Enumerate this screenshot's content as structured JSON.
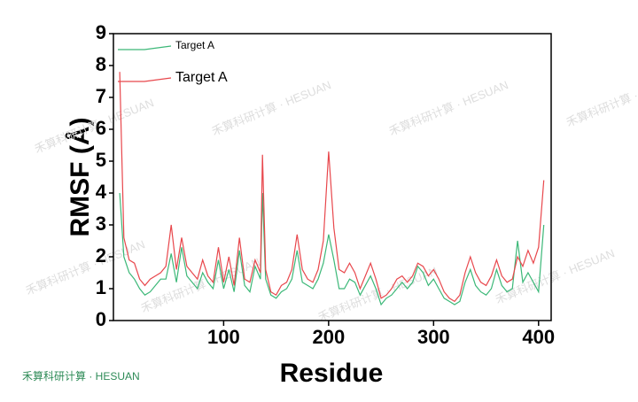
{
  "chart_data": {
    "type": "line",
    "xlabel": "Residue",
    "ylabel": "RMSF (Å)",
    "watermark": "禾算科研计算 · HESUAN",
    "footer": "禾算科研计算 · HESUAN",
    "x": [
      1,
      5,
      10,
      15,
      20,
      25,
      30,
      35,
      40,
      45,
      50,
      55,
      60,
      65,
      70,
      75,
      80,
      85,
      90,
      95,
      100,
      105,
      110,
      115,
      120,
      125,
      130,
      135,
      137,
      140,
      145,
      150,
      155,
      160,
      165,
      170,
      175,
      180,
      185,
      190,
      195,
      200,
      205,
      210,
      215,
      220,
      225,
      230,
      235,
      240,
      245,
      250,
      255,
      260,
      265,
      270,
      275,
      280,
      285,
      290,
      295,
      300,
      305,
      310,
      315,
      320,
      325,
      330,
      335,
      340,
      345,
      350,
      355,
      360,
      365,
      370,
      375,
      380,
      385,
      390,
      395,
      400,
      405
    ],
    "series": [
      {
        "name": "Target A",
        "color": "#3cb878",
        "values": [
          4.0,
          2.0,
          1.5,
          1.3,
          1.0,
          0.8,
          0.9,
          1.1,
          1.3,
          1.3,
          2.1,
          1.2,
          2.3,
          1.4,
          1.2,
          1.0,
          1.5,
          1.2,
          1.0,
          1.9,
          1.0,
          1.6,
          0.9,
          2.2,
          1.1,
          0.9,
          1.7,
          1.3,
          4.0,
          1.3,
          0.8,
          0.7,
          0.9,
          1.0,
          1.3,
          2.2,
          1.2,
          1.1,
          1.0,
          1.3,
          1.8,
          2.7,
          1.9,
          1.0,
          1.0,
          1.3,
          1.2,
          0.8,
          1.1,
          1.4,
          1.0,
          0.5,
          0.7,
          0.8,
          1.0,
          1.2,
          1.0,
          1.2,
          1.7,
          1.5,
          1.1,
          1.3,
          1.0,
          0.7,
          0.6,
          0.5,
          0.6,
          1.2,
          1.6,
          1.1,
          0.9,
          0.8,
          1.0,
          1.6,
          1.1,
          0.9,
          1.0,
          2.5,
          1.2,
          1.5,
          1.2,
          0.9,
          3.0
        ]
      },
      {
        "name": "Target A",
        "color": "#e8474c",
        "values": [
          7.8,
          2.6,
          1.9,
          1.8,
          1.3,
          1.1,
          1.3,
          1.4,
          1.5,
          1.7,
          3.0,
          1.6,
          2.6,
          1.7,
          1.5,
          1.3,
          1.9,
          1.4,
          1.2,
          2.3,
          1.2,
          2.0,
          1.1,
          2.6,
          1.3,
          1.2,
          1.9,
          1.5,
          5.2,
          1.6,
          0.9,
          0.8,
          1.1,
          1.2,
          1.6,
          2.7,
          1.6,
          1.3,
          1.2,
          1.6,
          2.5,
          5.3,
          2.9,
          1.6,
          1.5,
          1.8,
          1.5,
          1.0,
          1.4,
          1.8,
          1.3,
          0.7,
          0.8,
          1.0,
          1.3,
          1.4,
          1.2,
          1.4,
          1.8,
          1.7,
          1.4,
          1.6,
          1.3,
          0.9,
          0.7,
          0.6,
          0.8,
          1.5,
          2.0,
          1.5,
          1.2,
          1.1,
          1.4,
          1.9,
          1.4,
          1.2,
          1.3,
          2.0,
          1.7,
          2.2,
          1.8,
          2.3,
          4.4
        ]
      }
    ],
    "xlim": [
      -5,
      412
    ],
    "xticks": [
      100,
      200,
      300,
      400
    ],
    "ylim": [
      0,
      9
    ],
    "yticks": [
      0,
      1,
      2,
      3,
      4,
      5,
      6,
      7,
      8,
      9
    ]
  }
}
